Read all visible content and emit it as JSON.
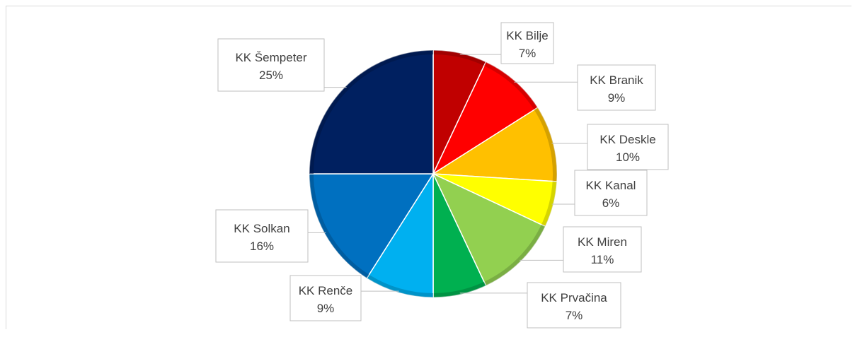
{
  "chart_data": {
    "type": "pie",
    "title": "",
    "slices": [
      {
        "label": "KK Bilje",
        "value": 7,
        "value_label": "7%",
        "color": "#c00000"
      },
      {
        "label": "KK Branik",
        "value": 9,
        "value_label": "9%",
        "color": "#ff0000"
      },
      {
        "label": "KK Deskle",
        "value": 10,
        "value_label": "10%",
        "color": "#ffc000"
      },
      {
        "label": "KK Kanal",
        "value": 6,
        "value_label": "6%",
        "color": "#ffff00"
      },
      {
        "label": "KK Miren",
        "value": 11,
        "value_label": "11%",
        "color": "#92d050"
      },
      {
        "label": "KK Prvačina",
        "value": 7,
        "value_label": "7%",
        "color": "#00b050"
      },
      {
        "label": "KK Renče",
        "value": 9,
        "value_label": "9%",
        "color": "#00b0f0"
      },
      {
        "label": "KK Solkan",
        "value": 16,
        "value_label": "16%",
        "color": "#0070c0"
      },
      {
        "label": "KK Šempeter",
        "value": 25,
        "value_label": "25%",
        "color": "#002060"
      }
    ],
    "legend": "none",
    "data_labels": "outside-with-leader-lines",
    "start": "top",
    "direction": "clockwise"
  }
}
